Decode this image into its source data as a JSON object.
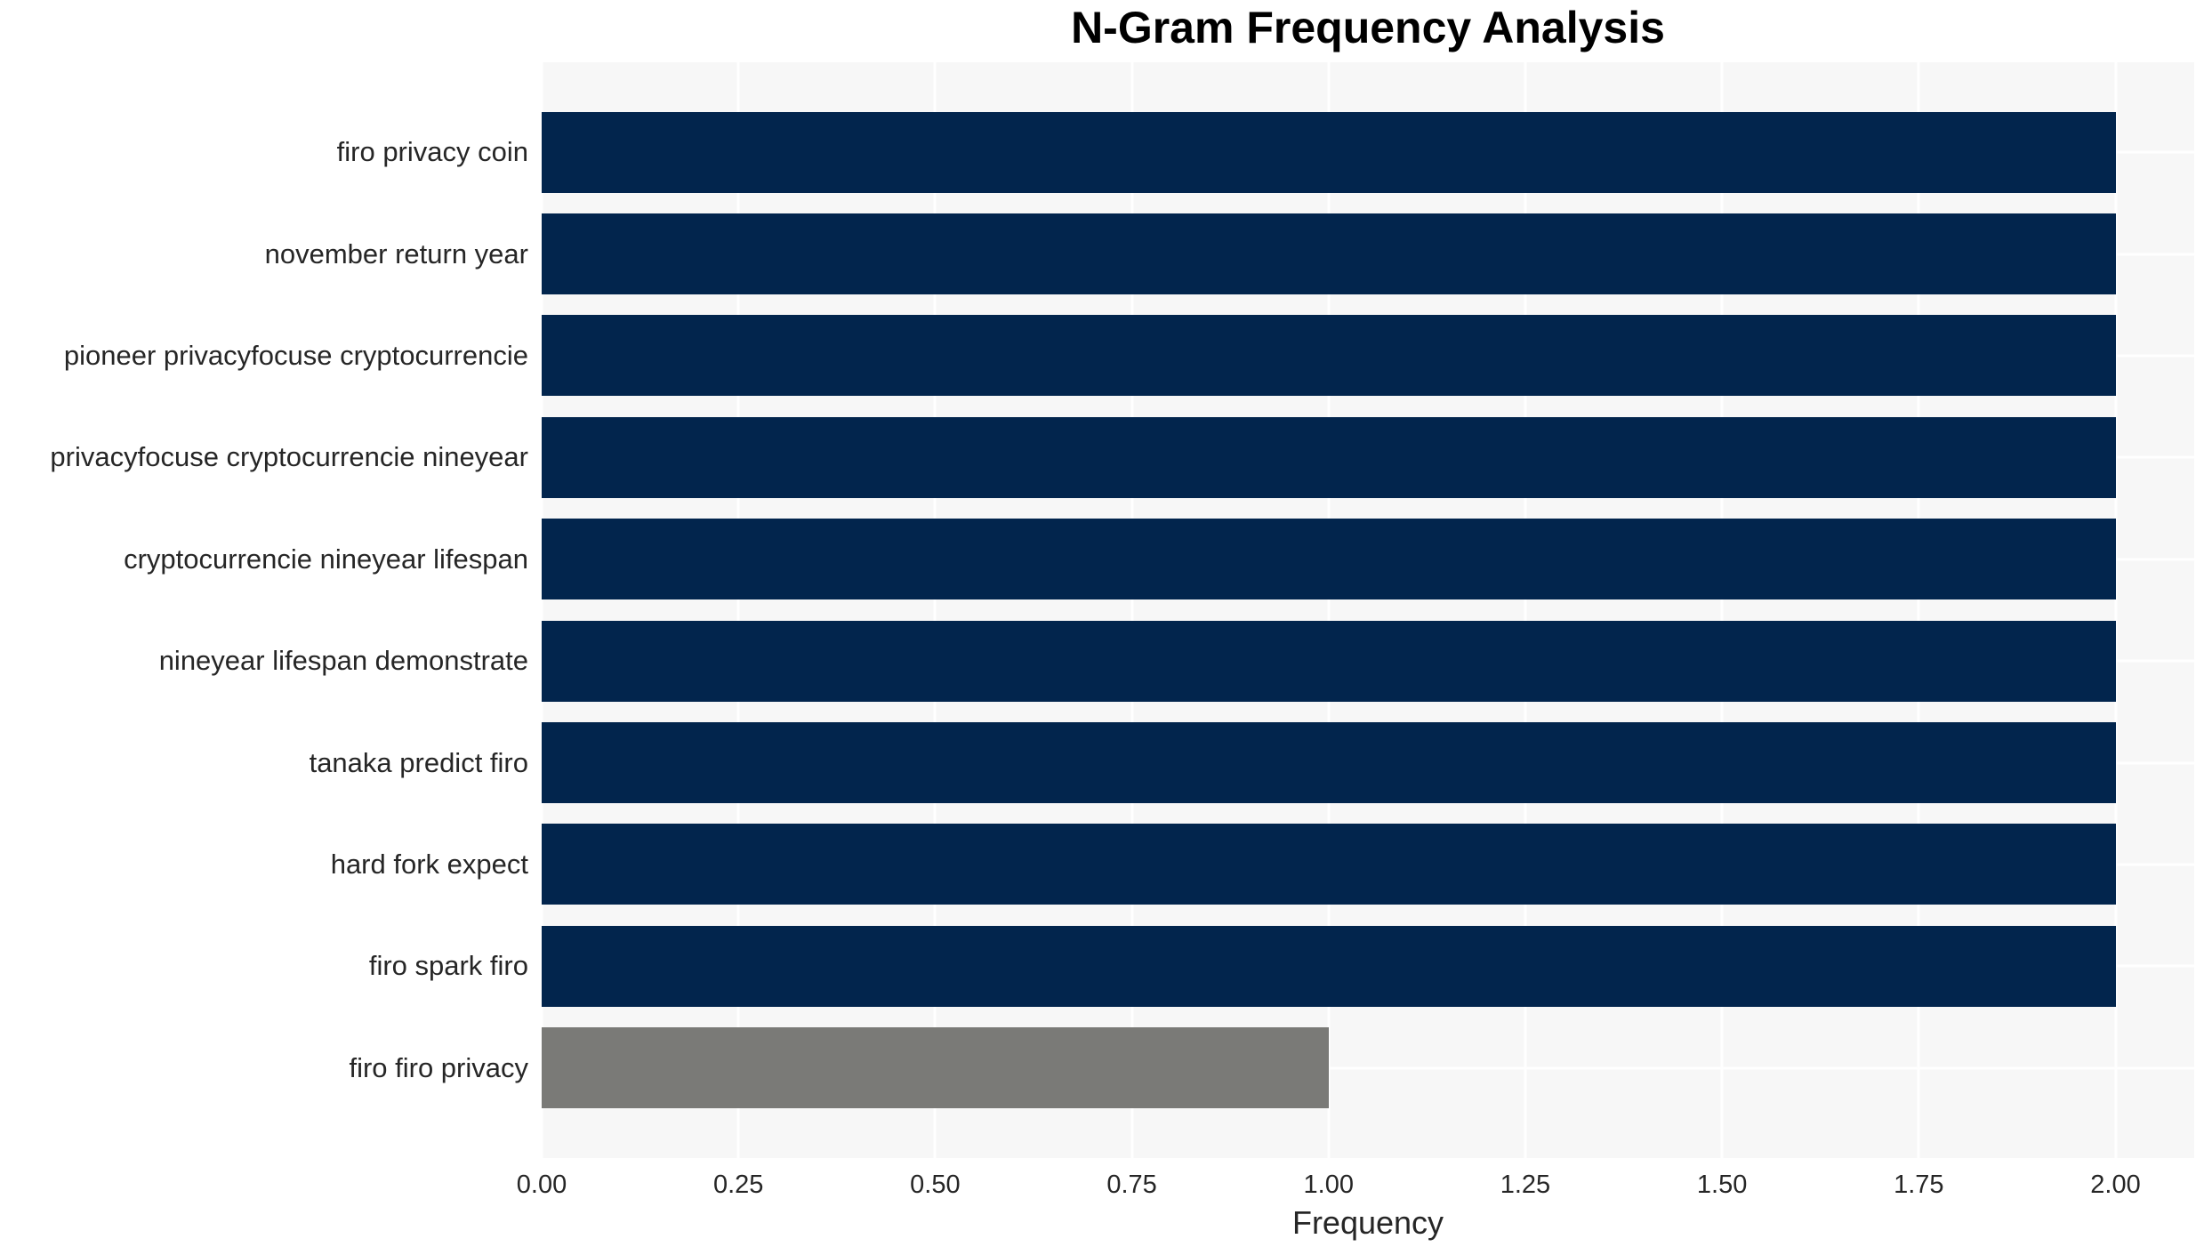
{
  "chart_data": {
    "type": "bar",
    "orientation": "horizontal",
    "title": "N-Gram Frequency Analysis",
    "xlabel": "Frequency",
    "ylabel": "",
    "categories": [
      "firo privacy coin",
      "november return year",
      "pioneer privacyfocuse cryptocurrencie",
      "privacyfocuse cryptocurrencie nineyear",
      "cryptocurrencie nineyear lifespan",
      "nineyear lifespan demonstrate",
      "tanaka predict firo",
      "hard fork expect",
      "firo spark firo",
      "firo firo privacy"
    ],
    "values": [
      2,
      2,
      2,
      2,
      2,
      2,
      2,
      2,
      2,
      1
    ],
    "bar_colors": [
      "#02254d",
      "#02254d",
      "#02254d",
      "#02254d",
      "#02254d",
      "#02254d",
      "#02254d",
      "#02254d",
      "#02254d",
      "#7a7a77"
    ],
    "xlim": [
      0,
      2.1
    ],
    "xticks": [
      {
        "value": 0.0,
        "label": "0.00"
      },
      {
        "value": 0.25,
        "label": "0.25"
      },
      {
        "value": 0.5,
        "label": "0.50"
      },
      {
        "value": 0.75,
        "label": "0.75"
      },
      {
        "value": 1.0,
        "label": "1.00"
      },
      {
        "value": 1.25,
        "label": "1.25"
      },
      {
        "value": 1.5,
        "label": "1.50"
      },
      {
        "value": 1.75,
        "label": "1.75"
      },
      {
        "value": 2.0,
        "label": "2.00"
      }
    ],
    "grid": true,
    "legend": null,
    "colors": {
      "bar_primary": "#02254d",
      "bar_secondary": "#7a7a77",
      "plot_background": "#f7f7f7",
      "gridline": "#ffffff",
      "tick_text": "#262626",
      "title_text": "#000000"
    }
  }
}
